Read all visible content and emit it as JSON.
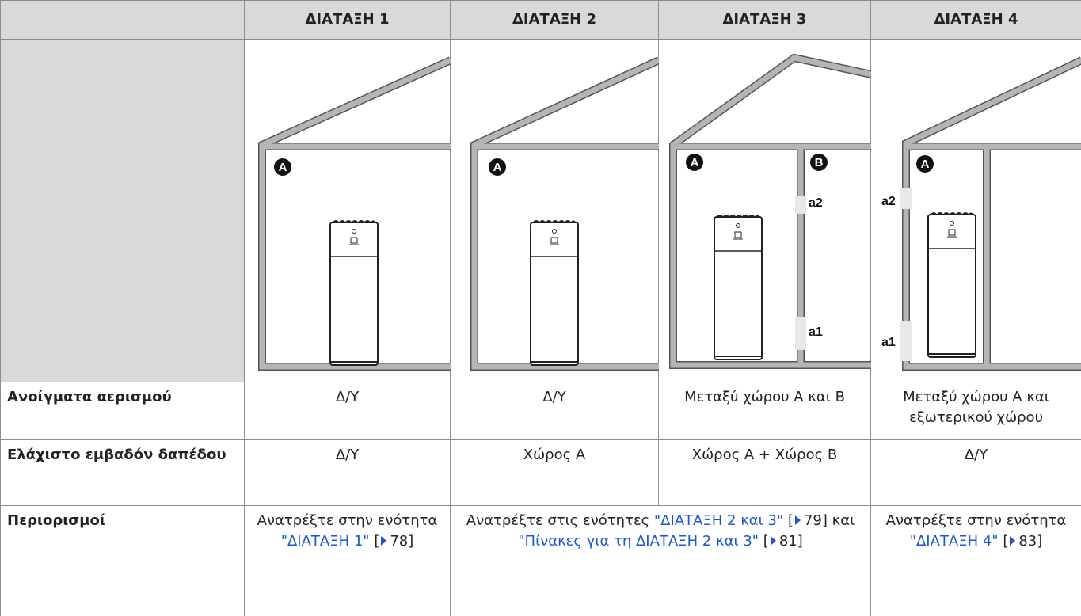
{
  "table": {
    "header": [
      "ΔΙΑΤΑΞΗ 1",
      "ΔΙΑΤΑΞΗ 2",
      "ΔΙΑΤΑΞΗ 3",
      "ΔΙΑΤΑΞΗ 4"
    ],
    "diagrams": [
      {
        "labels": [
          "A"
        ]
      },
      {
        "labels": [
          "A"
        ]
      },
      {
        "labels": [
          "A",
          "B",
          "a2",
          "a1"
        ]
      },
      {
        "labels": [
          "A",
          "a2",
          "a1"
        ]
      }
    ],
    "rows": [
      {
        "label": "Ανοίγματα αερισμού",
        "cells": [
          "Δ/Υ",
          "Δ/Υ",
          "Μεταξύ χώρου A και B",
          "Μεταξύ χώρου A και εξωτερικού χώρου"
        ]
      },
      {
        "label": "Ελάχιστο εμβαδόν δαπέδου",
        "cells": [
          "Δ/Υ",
          "Χώρος A",
          "Χώρος A + Χώρος B",
          "Δ/Υ"
        ]
      },
      {
        "label": "Περιορισμοί",
        "cells": [
          [
            {
              "text": "Ανατρέξτε στην ενότητα "
            },
            {
              "link": "\"ΔΙΑΤΑΞΗ 1\""
            },
            {
              "text": " ["
            },
            {
              "page": "78"
            },
            {
              "text": "]"
            }
          ],
          [
            {
              "text": "Ανατρέξτε στις ενότητες "
            },
            {
              "link": "\"ΔΙΑΤΑΞΗ 2 και 3\""
            },
            {
              "text": " ["
            },
            {
              "page": "79"
            },
            {
              "text": "] και "
            },
            {
              "link": "\"Πίνακες για τη ΔΙΑΤΑΞΗ 2 και 3\""
            },
            {
              "text": " ["
            },
            {
              "page": "81"
            },
            {
              "text": "]"
            }
          ],
          [
            {
              "text": "Ανατρέξτε στην ενότητα "
            },
            {
              "link": "\"ΔΙΑΤΑΞΗ 4\""
            },
            {
              "text": " ["
            },
            {
              "page": "83"
            },
            {
              "text": "]"
            }
          ]
        ]
      }
    ]
  }
}
